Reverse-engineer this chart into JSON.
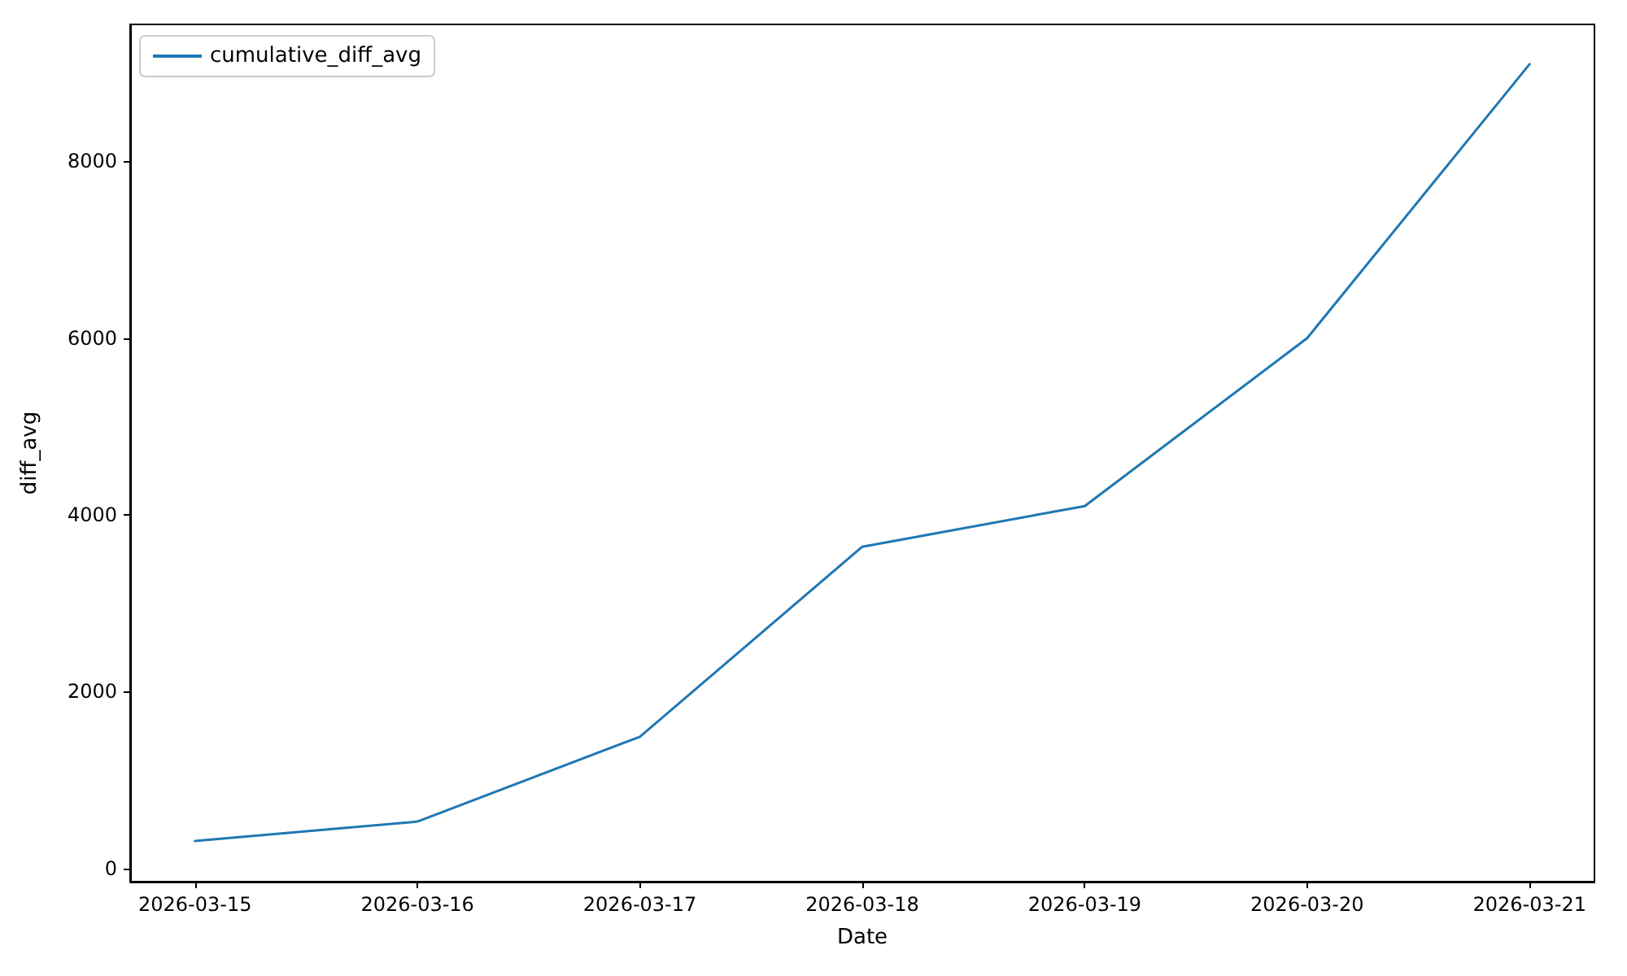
{
  "chart_data": {
    "type": "line",
    "xlabel": "Date",
    "ylabel": "diff_avg",
    "x": [
      "2026-03-15",
      "2026-03-16",
      "2026-03-17",
      "2026-03-18",
      "2026-03-19",
      "2026-03-20",
      "2026-03-21"
    ],
    "series": [
      {
        "name": "cumulative_diff_avg",
        "color": "#1f77b4",
        "values": [
          310,
          530,
          1490,
          3640,
          4100,
          6000,
          9100
        ]
      }
    ],
    "xlim": [
      "2026-03-14T17:00",
      "2026-03-21T07:00"
    ],
    "xticks": [
      "2026-03-15",
      "2026-03-16",
      "2026-03-17",
      "2026-03-18",
      "2026-03-19",
      "2026-03-20",
      "2026-03-21"
    ],
    "ylim": [
      -150,
      9550
    ],
    "yticks": [
      0,
      2000,
      4000,
      6000,
      8000
    ],
    "grid": false,
    "legend": "top left",
    "marker": "none",
    "line_style": "solid"
  }
}
